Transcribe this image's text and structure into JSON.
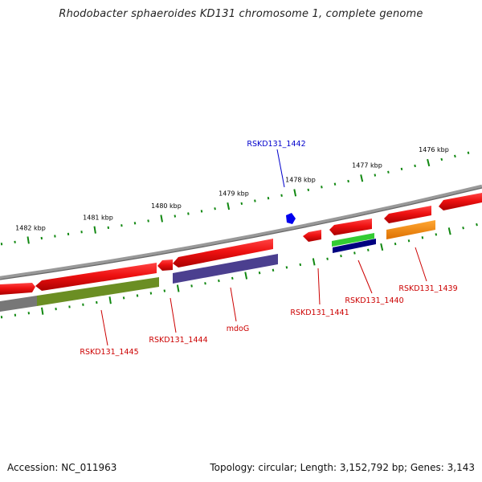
{
  "title": "Rhodobacter sphaeroides KD131 chromosome 1, complete genome",
  "footer": {
    "accession": "Accession: NC_011963",
    "summary": "Topology: circular; Length: 3,152,792 bp; Genes: 3,143"
  },
  "ruler": {
    "unit": "kbp",
    "ticks": [
      {
        "kb": 1476,
        "label": "1476 kbp"
      },
      {
        "kb": 1477,
        "label": "1477 kbp"
      },
      {
        "kb": 1478,
        "label": "1478 kbp"
      },
      {
        "kb": 1479,
        "label": "1479 kbp"
      },
      {
        "kb": 1480,
        "label": "1480 kbp"
      },
      {
        "kb": 1481,
        "label": "1481 kbp"
      },
      {
        "kb": 1482,
        "label": "1482 kbp"
      }
    ]
  },
  "features": {
    "colors": {
      "cds": "#ee1111",
      "gene_label": "#cc0000",
      "highlight_label": "#0000cc",
      "green": "#6b8e23",
      "slate": "#4b3f8f",
      "lime": "#33cc33",
      "navy": "#000080",
      "orange": "#ff8c00",
      "gray": "#777777",
      "backbone": "#888888",
      "tick": "#118811"
    },
    "gene_labels": [
      {
        "id": "RSKD131_1442",
        "text": "RSKD131_1442",
        "highlight": true
      },
      {
        "id": "RSKD131_1445",
        "text": "RSKD131_1445"
      },
      {
        "id": "RSKD131_1444",
        "text": "RSKD131_1444"
      },
      {
        "id": "mdoG",
        "text": "mdoG"
      },
      {
        "id": "RSKD131_1441",
        "text": "RSKD131_1441"
      },
      {
        "id": "RSKD131_1440",
        "text": "RSKD131_1440"
      },
      {
        "id": "RSKD131_1439",
        "text": "RSKD131_1439"
      }
    ]
  }
}
